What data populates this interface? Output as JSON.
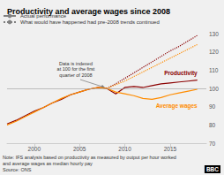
{
  "chart_data": {
    "type": "line",
    "title": "Productivity and average wages since 2008",
    "background": "#f0f0f0",
    "legend": "upper left",
    "legend_entries": [
      {
        "name": "Actual performance",
        "color": "#808080",
        "line_style": "solid"
      },
      {
        "name": "What would have happened had pre-2008 trends continued",
        "color": "#808080",
        "line_style": "dotted"
      }
    ],
    "series": [
      {
        "name": "Productivity",
        "color": "#8B0000",
        "line_style": "solid",
        "x": [
          1997,
          1998,
          1999,
          2000,
          2001,
          2002,
          2003,
          2004,
          2005,
          2006,
          2007,
          2008,
          2009,
          2010,
          2011,
          2012,
          2013,
          2014,
          2015,
          2016,
          2017,
          2018
        ],
        "values": [
          80.5,
          82.5,
          85.0,
          87.5,
          89.5,
          92.0,
          94.0,
          96.5,
          98.0,
          99.5,
          100.5,
          100.0,
          97.0,
          100.5,
          101.0,
          100.5,
          101.5,
          102.5,
          103.0,
          103.5,
          104.0,
          104.5
        ]
      },
      {
        "name": "Average wages",
        "color": "#FF8C00",
        "line_style": "solid",
        "x": [
          1997,
          1998,
          1999,
          2000,
          2001,
          2002,
          2003,
          2004,
          2005,
          2006,
          2007,
          2008,
          2009,
          2010,
          2011,
          2012,
          2013,
          2014,
          2015,
          2016,
          2017,
          2018
        ],
        "values": [
          80.0,
          82.0,
          84.5,
          87.0,
          89.5,
          92.0,
          94.5,
          96.5,
          98.0,
          99.5,
          100.5,
          100.0,
          98.0,
          97.0,
          96.0,
          94.5,
          94.0,
          95.0,
          96.5,
          97.5,
          98.5,
          99.5
        ]
      },
      {
        "name": "Productivity",
        "color": "#8B0000",
        "line_style": "dotted",
        "x": [
          2008,
          2009,
          2010,
          2011,
          2012,
          2013,
          2014,
          2015,
          2016,
          2017,
          2018
        ],
        "values": [
          100.0,
          102.5,
          105.5,
          108.5,
          111.5,
          114.5,
          117.5,
          120.5,
          123.0,
          126.0,
          129.0
        ]
      },
      {
        "name": "Average wages",
        "color": "#FF8C00",
        "line_style": "dotted",
        "x": [
          2008,
          2009,
          2010,
          2011,
          2012,
          2013,
          2014,
          2015,
          2016,
          2017,
          2018
        ],
        "values": [
          100.0,
          102.0,
          104.0,
          106.5,
          109.0,
          111.5,
          114.0,
          116.5,
          119.0,
          121.5,
          124.0
        ]
      }
    ],
    "hline": 100,
    "annotation": {
      "text": "Data is indexed\nat 100 for the first\nquarter of 2008",
      "x": 2008,
      "y": 100
    },
    "xlim": [
      1997,
      2019
    ],
    "xticks": [
      2000,
      2005,
      2010,
      2015
    ],
    "ylim": [
      70,
      130
    ],
    "yticks": [
      70,
      80,
      90,
      100,
      110,
      120,
      130
    ],
    "grid": false,
    "note": "Note: IFS analysis based on productivity as measured by output per hour worked\nand average wages as median hourly pay",
    "source": "Source: ONS",
    "logo_text": "BBC"
  }
}
